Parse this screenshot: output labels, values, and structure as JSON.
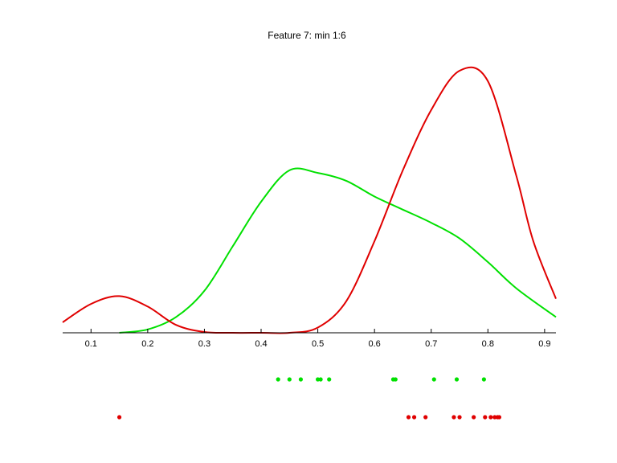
{
  "chart_data": {
    "type": "line",
    "title": "Feature 7: min 1:6",
    "xlabel": "",
    "ylabel": "",
    "xlim": [
      0.05,
      0.92
    ],
    "ylim": [
      0,
      1
    ],
    "grid": false,
    "legend": "none",
    "x_ticks": [
      "0.1",
      "0.2",
      "0.3",
      "0.4",
      "0.5",
      "0.6",
      "0.7",
      "0.8",
      "0.9"
    ],
    "series": [
      {
        "color": "#00e000",
        "x": [
          0.15,
          0.2,
          0.25,
          0.3,
          0.35,
          0.4,
          0.45,
          0.5,
          0.55,
          0.6,
          0.65,
          0.7,
          0.75,
          0.8,
          0.85,
          0.92
        ],
        "y": [
          0.0,
          0.013,
          0.06,
          0.16,
          0.33,
          0.5,
          0.62,
          0.61,
          0.58,
          0.52,
          0.47,
          0.42,
          0.36,
          0.27,
          0.17,
          0.06
        ]
      },
      {
        "color": "#e00000",
        "x": [
          0.05,
          0.1,
          0.15,
          0.2,
          0.25,
          0.3,
          0.35,
          0.4,
          0.45,
          0.5,
          0.55,
          0.6,
          0.65,
          0.7,
          0.75,
          0.8,
          0.85,
          0.88,
          0.92
        ],
        "y": [
          0.04,
          0.11,
          0.14,
          0.1,
          0.03,
          0.003,
          0.0,
          0.0,
          0.0,
          0.02,
          0.12,
          0.35,
          0.62,
          0.85,
          1.0,
          0.96,
          0.6,
          0.35,
          0.13
        ]
      }
    ],
    "points": [
      {
        "color": "#00e000",
        "x": [
          0.43,
          0.45,
          0.47,
          0.5,
          0.505,
          0.52,
          0.633,
          0.637,
          0.705,
          0.745,
          0.793
        ]
      },
      {
        "color": "#e00000",
        "x": [
          0.15,
          0.66,
          0.67,
          0.69,
          0.74,
          0.75,
          0.775,
          0.795,
          0.805,
          0.812,
          0.817,
          0.82
        ]
      }
    ]
  }
}
